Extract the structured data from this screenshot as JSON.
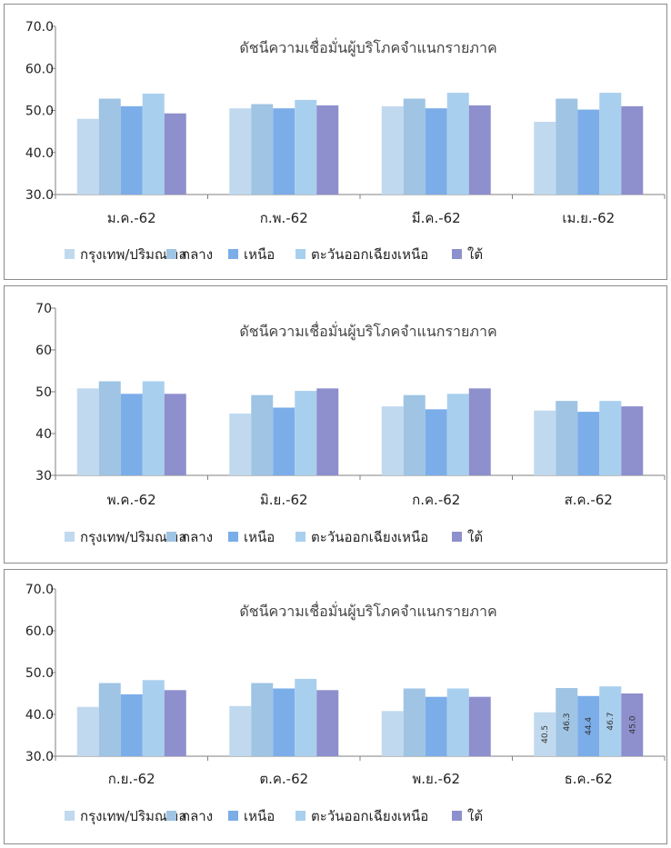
{
  "series_colors": [
    "#c1d9ee",
    "#9fc4e4",
    "#7bade9",
    "#a9cfee",
    "#8e8fcd"
  ],
  "chart_data": [
    {
      "type": "bar",
      "title": "ดัชนีความเชื่อมั่นผู้บริโภคจำแนกรายภาค",
      "ylim": [
        30,
        70
      ],
      "yticks": [
        "30.0",
        "40.0",
        "50.0",
        "60.0",
        "70.0"
      ],
      "grid": false,
      "legend_position": "bottom",
      "categories": [
        "ม.ค.-62",
        "ก.พ.-62",
        "มี.ค.-62",
        "เม.ย.-62"
      ],
      "series": [
        {
          "name": "กรุงเทพ/ปริมณฑล",
          "values": [
            48.0,
            50.5,
            51.0,
            47.3
          ]
        },
        {
          "name": "กลาง",
          "values": [
            52.8,
            51.5,
            52.8,
            52.8
          ]
        },
        {
          "name": "เหนือ",
          "values": [
            51.0,
            50.5,
            50.5,
            50.2
          ]
        },
        {
          "name": "ตะวันออกเฉียงเหนือ",
          "values": [
            54.0,
            52.5,
            54.2,
            54.2
          ]
        },
        {
          "name": "ใต้",
          "values": [
            49.3,
            51.2,
            51.2,
            51.0
          ]
        }
      ]
    },
    {
      "type": "bar",
      "title": "ดัชนีความเชื่อมั่นผู้บริโภคจำแนกรายภาค",
      "ylim": [
        30,
        70
      ],
      "yticks": [
        "30",
        "40",
        "50",
        "60",
        "70"
      ],
      "grid": false,
      "legend_position": "bottom",
      "categories": [
        "พ.ค.-62",
        "มิ.ย.-62",
        "ก.ค.-62",
        "ส.ค.-62"
      ],
      "series": [
        {
          "name": "กรุงเทพ/ปริมณฑล",
          "values": [
            50.8,
            44.8,
            46.5,
            45.5
          ]
        },
        {
          "name": "กลาง",
          "values": [
            52.5,
            49.2,
            49.2,
            47.8
          ]
        },
        {
          "name": "เหนือ",
          "values": [
            49.5,
            46.2,
            45.8,
            45.2
          ]
        },
        {
          "name": "ตะวันออกเฉียงเหนือ",
          "values": [
            52.5,
            50.2,
            49.5,
            47.8
          ]
        },
        {
          "name": "ใต้",
          "values": [
            49.5,
            50.8,
            50.8,
            46.5
          ]
        }
      ]
    },
    {
      "type": "bar",
      "title": "ดัชนีความเชื่อมั่นผู้บริโภคจำแนกรายภาค",
      "ylim": [
        30,
        70
      ],
      "yticks": [
        "30.0",
        "40.0",
        "50.0",
        "60.0",
        "70.0"
      ],
      "grid": false,
      "legend_position": "bottom",
      "categories": [
        "ก.ย.-62",
        "ต.ค.-62",
        "พ.ย.-62",
        "ธ.ค.-62"
      ],
      "series": [
        {
          "name": "กรุงเทพ/ปริมณฑล",
          "values": [
            41.8,
            42.0,
            40.8,
            40.5
          ]
        },
        {
          "name": "กลาง",
          "values": [
            47.5,
            47.5,
            46.2,
            46.3
          ]
        },
        {
          "name": "เหนือ",
          "values": [
            44.8,
            46.2,
            44.2,
            44.4
          ]
        },
        {
          "name": "ตะวันออกเฉียงเหนือ",
          "values": [
            48.2,
            48.5,
            46.2,
            46.7
          ]
        },
        {
          "name": "ใต้",
          "values": [
            45.8,
            45.8,
            44.2,
            45.0
          ]
        }
      ],
      "data_labels": {
        "category_index": 3,
        "labels": [
          "40.5",
          "46.3",
          "44.4",
          "46.7",
          "45.0"
        ]
      }
    }
  ]
}
